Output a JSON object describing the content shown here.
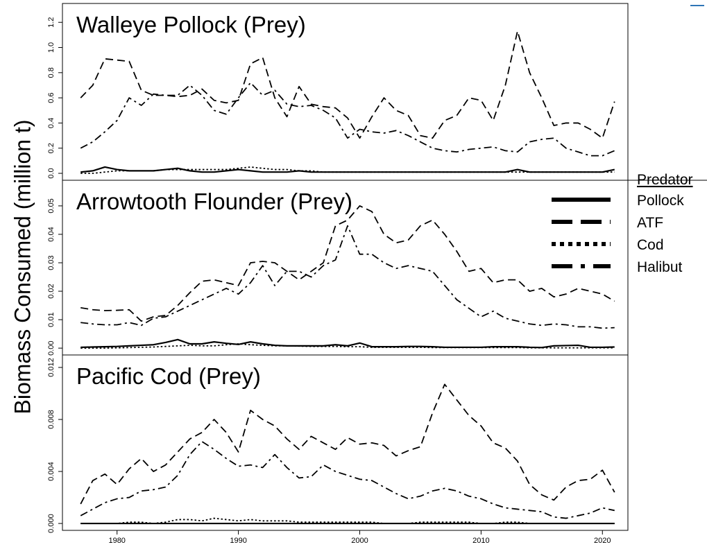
{
  "chart_data": [
    {
      "type": "line",
      "title": "Walleye Pollock (Prey)",
      "ylabel": "Biomass Consumed (million t)",
      "legend_title": "Predator",
      "xlim": [
        1975.5,
        2022.1
      ],
      "ylim": [
        -0.055,
        1.35
      ],
      "yticks": [
        {
          "value": 0,
          "label": "0.0"
        },
        0.2,
        0.4,
        0.6,
        0.8,
        {
          "value": 1,
          "label": "1.0"
        },
        1.2
      ],
      "x": [
        1977,
        1978,
        1979,
        1980,
        1981,
        1982,
        1983,
        1984,
        1985,
        1986,
        1987,
        1988,
        1989,
        1990,
        1991,
        1992,
        1993,
        1994,
        1995,
        1996,
        1997,
        1998,
        1999,
        2000,
        2001,
        2002,
        2003,
        2004,
        2005,
        2006,
        2007,
        2008,
        2009,
        2010,
        2011,
        2012,
        2013,
        2014,
        2015,
        2016,
        2017,
        2018,
        2019,
        2020,
        2021
      ],
      "series": [
        {
          "name": "Pollock",
          "color": "#000000",
          "style": "solid",
          "values": [
            0.01,
            0.02,
            0.05,
            0.03,
            0.02,
            0.02,
            0.02,
            0.03,
            0.04,
            0.02,
            0.01,
            0.01,
            0.02,
            0.03,
            0.02,
            0.01,
            0.01,
            0.01,
            0.02,
            0.01,
            0.01,
            0.01,
            0.01,
            0.01,
            0.01,
            0.01,
            0.01,
            0.01,
            0.01,
            0.01,
            0.01,
            0.01,
            0.01,
            0.01,
            0.01,
            0.01,
            0.03,
            0.01,
            0.01,
            0.01,
            0.01,
            0.01,
            0.01,
            0.01,
            0.03
          ]
        },
        {
          "name": "ATF",
          "color": "#000000",
          "style": "dashed",
          "values": [
            0.6,
            0.7,
            0.91,
            0.9,
            0.89,
            0.66,
            0.62,
            0.62,
            0.61,
            0.62,
            0.67,
            0.58,
            0.56,
            0.58,
            0.87,
            0.92,
            0.6,
            0.45,
            0.69,
            0.55,
            0.53,
            0.52,
            0.44,
            0.28,
            0.45,
            0.6,
            0.5,
            0.46,
            0.3,
            0.28,
            0.42,
            0.46,
            0.6,
            0.58,
            0.42,
            0.7,
            1.13,
            0.8,
            0.6,
            0.38,
            0.4,
            0.4,
            0.35,
            0.28,
            0.57
          ]
        },
        {
          "name": "Cod",
          "color": "#000000",
          "style": "dotted",
          "values": [
            0,
            0,
            0.01,
            0.02,
            0.02,
            0.02,
            0.02,
            0.03,
            0.03,
            0.03,
            0.03,
            0.03,
            0.03,
            0.04,
            0.05,
            0.04,
            0.03,
            0.03,
            0.02,
            0.02,
            0.01,
            0.01,
            0.01,
            0.01,
            0.01,
            0.01,
            0.01,
            0.01,
            0.01,
            0.01,
            0.01,
            0.01,
            0.01,
            0.01,
            0.01,
            0.01,
            0.01,
            0.01,
            0.01,
            0.01,
            0.01,
            0.01,
            0.01,
            0.01,
            0.01
          ]
        },
        {
          "name": "Halibut",
          "color": "#000000",
          "style": "dashdot",
          "values": [
            0.2,
            0.25,
            0.33,
            0.42,
            0.6,
            0.54,
            0.63,
            0.62,
            0.62,
            0.7,
            0.62,
            0.5,
            0.47,
            0.6,
            0.72,
            0.62,
            0.66,
            0.55,
            0.53,
            0.54,
            0.5,
            0.44,
            0.28,
            0.35,
            0.33,
            0.32,
            0.34,
            0.3,
            0.25,
            0.2,
            0.18,
            0.17,
            0.19,
            0.2,
            0.21,
            0.18,
            0.17,
            0.25,
            0.27,
            0.28,
            0.2,
            0.17,
            0.14,
            0.14,
            0.18
          ]
        }
      ]
    },
    {
      "type": "line",
      "title": "Arrowtooth Flounder (Prey)",
      "xlim": [
        1975.5,
        2022.1
      ],
      "ylim": [
        -0.0024,
        0.059
      ],
      "yticks": [
        {
          "value": 0,
          "label": "0.00"
        },
        0.01,
        0.02,
        0.03,
        0.04,
        0.05
      ],
      "x": [
        1977,
        1978,
        1979,
        1980,
        1981,
        1982,
        1983,
        1984,
        1985,
        1986,
        1987,
        1988,
        1989,
        1990,
        1991,
        1992,
        1993,
        1994,
        1995,
        1996,
        1997,
        1998,
        1999,
        2000,
        2001,
        2002,
        2003,
        2004,
        2005,
        2006,
        2007,
        2008,
        2009,
        2010,
        2011,
        2012,
        2013,
        2014,
        2015,
        2016,
        2017,
        2018,
        2019,
        2020,
        2021
      ],
      "series": [
        {
          "color": "#000000",
          "style": "solid",
          "values": [
            0.0003,
            0.0004,
            0.0005,
            0.0006,
            0.0008,
            0.001,
            0.0012,
            0.002,
            0.003,
            0.0015,
            0.0015,
            0.0022,
            0.0017,
            0.0013,
            0.0022,
            0.0015,
            0.001,
            0.0008,
            0.0008,
            0.0008,
            0.0008,
            0.0012,
            0.0008,
            0.0018,
            0.0005,
            0.0005,
            0.0005,
            0.0006,
            0.0006,
            0.0005,
            0.0003,
            0.0003,
            0.0003,
            0.0003,
            0.0005,
            0.0005,
            0.0005,
            0.0003,
            0.0002,
            0.0008,
            0.0009,
            0.001,
            0.0003,
            0.0003,
            0.0004
          ]
        },
        {
          "color": "#000000",
          "style": "dashed",
          "values": [
            0.0142,
            0.0135,
            0.0132,
            0.0133,
            0.0135,
            0.0095,
            0.011,
            0.0115,
            0.015,
            0.0195,
            0.0235,
            0.024,
            0.023,
            0.022,
            0.03,
            0.0305,
            0.03,
            0.027,
            0.024,
            0.027,
            0.03,
            0.043,
            0.045,
            0.05,
            0.048,
            0.04,
            0.037,
            0.038,
            0.043,
            0.045,
            0.04,
            0.034,
            0.027,
            0.028,
            0.023,
            0.024,
            0.024,
            0.02,
            0.021,
            0.018,
            0.019,
            0.021,
            0.02,
            0.019,
            0.0165
          ]
        },
        {
          "color": "#000000",
          "style": "dotted",
          "values": [
            0,
            0,
            0,
            0.0001,
            0.0002,
            0.0003,
            0.0004,
            0.0006,
            0.0008,
            0.001,
            0.0008,
            0.0008,
            0.0012,
            0.0015,
            0.0012,
            0.001,
            0.0008,
            0.0008,
            0.0007,
            0.0006,
            0.0006,
            0.0006,
            0.0005,
            0.0005,
            0.0003,
            0.0003,
            0.0003,
            0.0003,
            0.0003,
            0.0002,
            0.0002,
            0.0002,
            0.0002,
            0.0002,
            0.0002,
            0.0002,
            0.0002,
            0.0001,
            0.0001,
            0.0001,
            0.0001,
            0.0001,
            0.0001,
            0.0001,
            0.0001
          ]
        },
        {
          "color": "#000000",
          "style": "dashdot",
          "values": [
            0.009,
            0.0085,
            0.0082,
            0.0082,
            0.009,
            0.008,
            0.0105,
            0.011,
            0.013,
            0.015,
            0.017,
            0.019,
            0.021,
            0.019,
            0.023,
            0.029,
            0.022,
            0.027,
            0.027,
            0.025,
            0.029,
            0.031,
            0.043,
            0.033,
            0.033,
            0.03,
            0.028,
            0.029,
            0.028,
            0.027,
            0.022,
            0.017,
            0.014,
            0.011,
            0.013,
            0.0105,
            0.0095,
            0.0085,
            0.008,
            0.0085,
            0.0082,
            0.0075,
            0.0075,
            0.007,
            0.0072
          ]
        }
      ]
    },
    {
      "type": "line",
      "title": "Pacific Cod  (Prey)",
      "xlim": [
        1975.5,
        2022.1
      ],
      "ylim": [
        -0.00053,
        0.01296
      ],
      "yticks": [
        {
          "value": 0,
          "label": "0.000"
        },
        0.004,
        0.008,
        0.012
      ],
      "xticks": [
        1980,
        1990,
        2000,
        2010,
        2020
      ],
      "x": [
        1977,
        1978,
        1979,
        1980,
        1981,
        1982,
        1983,
        1984,
        1985,
        1986,
        1987,
        1988,
        1989,
        1990,
        1991,
        1992,
        1993,
        1994,
        1995,
        1996,
        1997,
        1998,
        1999,
        2000,
        2001,
        2002,
        2003,
        2004,
        2005,
        2006,
        2007,
        2008,
        2009,
        2010,
        2011,
        2012,
        2013,
        2014,
        2015,
        2016,
        2017,
        2018,
        2019,
        2020,
        2021
      ],
      "series": [
        {
          "color": "#000000",
          "style": "solid",
          "values": [
            0,
            0,
            0,
            0,
            0,
            0,
            0,
            0,
            0,
            0,
            0,
            0,
            0,
            0,
            0,
            0,
            0,
            0,
            0,
            0,
            0,
            0,
            0,
            0,
            0,
            0,
            0,
            0,
            0,
            0,
            0,
            0,
            0,
            0,
            0,
            0,
            0,
            0,
            0,
            0,
            0,
            0,
            0,
            0,
            0
          ]
        },
        {
          "color": "#000000",
          "style": "dashed",
          "values": [
            0.0015,
            0.0033,
            0.0038,
            0.003,
            0.0042,
            0.005,
            0.004,
            0.0045,
            0.0055,
            0.0065,
            0.007,
            0.008,
            0.007,
            0.0055,
            0.0087,
            0.008,
            0.0075,
            0.0065,
            0.0057,
            0.0067,
            0.0062,
            0.0057,
            0.0066,
            0.0061,
            0.0062,
            0.006,
            0.0052,
            0.0056,
            0.0059,
            0.0085,
            0.0107,
            0.0095,
            0.0083,
            0.0075,
            0.0062,
            0.0058,
            0.0048,
            0.003,
            0.0022,
            0.0018,
            0.0028,
            0.0033,
            0.0034,
            0.0041,
            0.0024
          ]
        },
        {
          "color": "#000000",
          "style": "dotted",
          "values": [
            0,
            0,
            0,
            0,
            0.0001,
            0.0001,
            0,
            0.0001,
            0.0003,
            0.0003,
            0.0002,
            0.0004,
            0.0003,
            0.0002,
            0.0003,
            0.0002,
            0.0002,
            0.0002,
            0.0001,
            0.0001,
            0.0001,
            0.0001,
            0.0001,
            0.0001,
            0.0001,
            0,
            0,
            0,
            0.0001,
            0.0001,
            0.0001,
            0.0001,
            0.0001,
            0,
            0,
            0.0001,
            0.0001,
            0,
            0,
            0,
            0,
            0,
            0,
            0,
            0
          ]
        },
        {
          "color": "#000000",
          "style": "dashdot",
          "values": [
            0.0006,
            0.0011,
            0.0016,
            0.0019,
            0.002,
            0.0025,
            0.0026,
            0.0028,
            0.0037,
            0.0053,
            0.0063,
            0.0057,
            0.005,
            0.0044,
            0.0045,
            0.0043,
            0.0053,
            0.0043,
            0.0035,
            0.0036,
            0.0045,
            0.004,
            0.0037,
            0.0034,
            0.0033,
            0.0028,
            0.0023,
            0.0019,
            0.0021,
            0.0025,
            0.0027,
            0.0025,
            0.0021,
            0.0019,
            0.0015,
            0.0012,
            0.0011,
            0.001,
            0.0009,
            0.0005,
            0.0004,
            0.0006,
            0.0008,
            0.0012,
            0.001
          ]
        }
      ]
    }
  ]
}
